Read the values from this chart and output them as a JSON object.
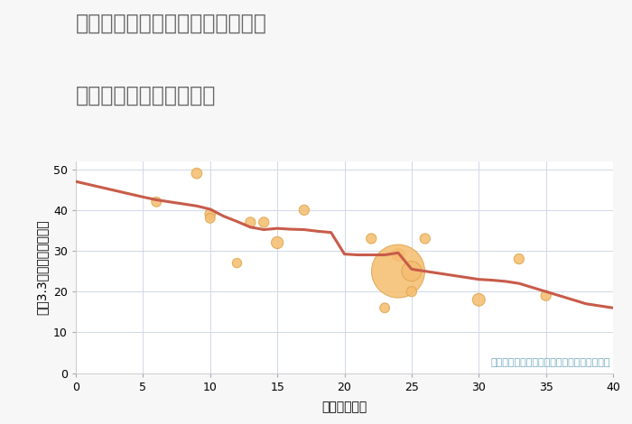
{
  "title_line1": "兵庫県たつの市揖保川町新在家の",
  "title_line2": "築年数別中古戸建て価格",
  "xlabel": "築年数（年）",
  "ylabel": "坪（3.3㎡）単価（万円）",
  "background_color": "#f7f7f7",
  "plot_bg_color": "#ffffff",
  "line_color": "#c85c4a",
  "line_x": [
    0,
    5,
    6,
    7,
    8,
    9,
    10,
    11,
    12,
    13,
    14,
    15,
    16,
    17,
    18,
    19,
    20,
    21,
    22,
    23,
    24,
    25,
    26,
    27,
    28,
    29,
    30,
    31,
    32,
    33,
    34,
    35,
    36,
    37,
    38,
    40
  ],
  "line_y": [
    47,
    43.2,
    42.5,
    42,
    41.5,
    41,
    40.2,
    38.5,
    37.2,
    35.8,
    35.2,
    35.5,
    35.3,
    35.2,
    34.8,
    34.5,
    29.2,
    29.0,
    29.0,
    29.0,
    29.5,
    25.5,
    25.0,
    24.5,
    24.0,
    23.5,
    23.0,
    22.8,
    22.5,
    22.0,
    21.0,
    20.0,
    19.0,
    18.0,
    17.0,
    16.0
  ],
  "scatter_x": [
    6,
    9,
    10,
    10,
    12,
    13,
    14,
    15,
    17,
    22,
    23,
    24,
    24,
    25,
    25,
    26,
    30,
    33,
    35
  ],
  "scatter_y": [
    42,
    49,
    39,
    38,
    27,
    37,
    37,
    32,
    40,
    33,
    16,
    29,
    25,
    20,
    25,
    33,
    18,
    28,
    19
  ],
  "scatter_sizes": [
    60,
    70,
    70,
    60,
    55,
    65,
    65,
    90,
    65,
    65,
    60,
    100,
    1800,
    65,
    250,
    65,
    100,
    65,
    65
  ],
  "annotation": "円の大きさは、取引のあった物件面積を示す",
  "annotation_color": "#6fa8c0",
  "xlim": [
    0,
    40
  ],
  "ylim": [
    0,
    52
  ],
  "xticks": [
    0,
    5,
    10,
    15,
    20,
    25,
    30,
    35,
    40
  ],
  "yticks": [
    0,
    10,
    20,
    30,
    40,
    50
  ],
  "grid_color": "#d0d8e8",
  "scatter_color": "#f5be72",
  "scatter_edge_color": "#e0a850",
  "title_color": "#666666",
  "title_fontsize": 17,
  "label_fontsize": 10,
  "tick_fontsize": 9,
  "annotation_fontsize": 8
}
